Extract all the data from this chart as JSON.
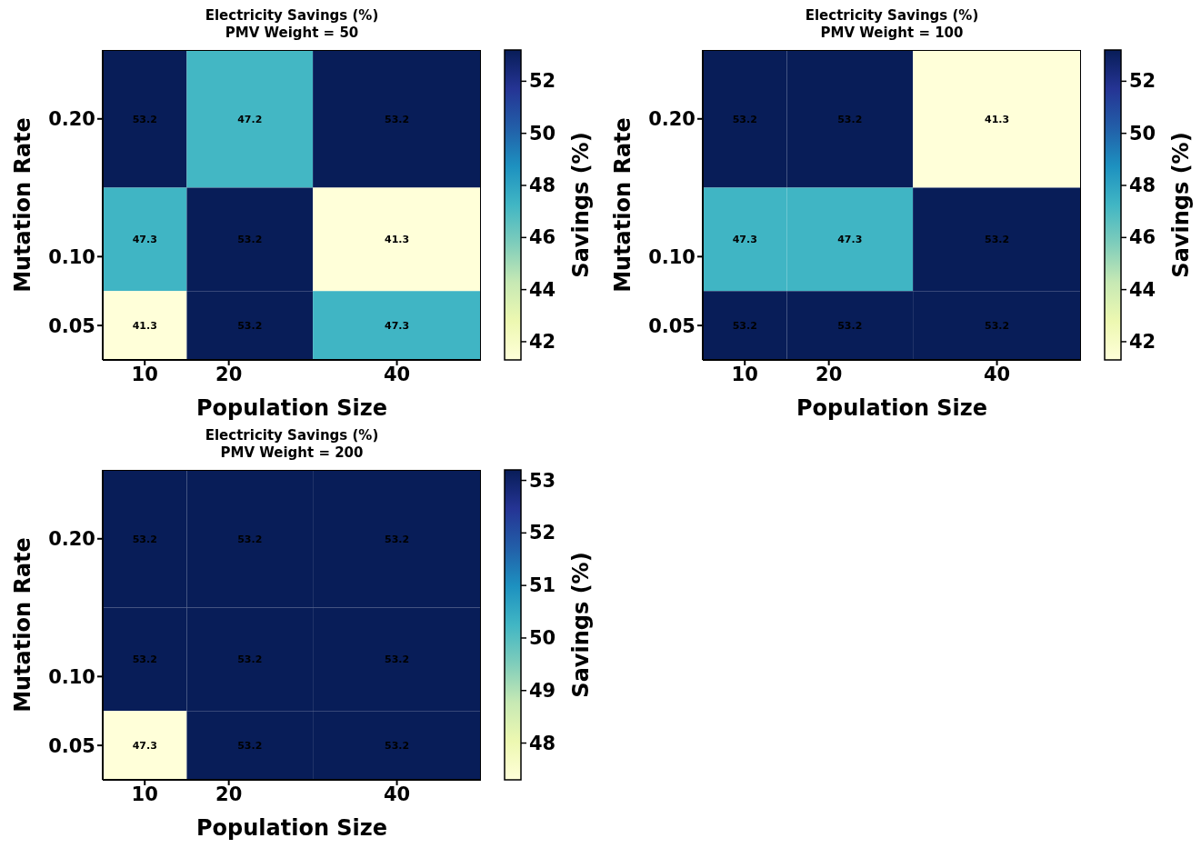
{
  "chart_data": [
    {
      "type": "heatmap",
      "title": "Electricity Savings (%)",
      "subtitle": "PMV Weight = 50",
      "xlabel": "Population Size",
      "ylabel": "Mutation Rate",
      "clabel": "Savings (%)",
      "x": [
        10,
        20,
        40
      ],
      "y": [
        0.2,
        0.1,
        0.05
      ],
      "xlim": [
        5,
        50
      ],
      "ylim": [
        0.025,
        0.25
      ],
      "xticks": [
        10,
        20,
        40
      ],
      "yticks": [
        {
          "value": 0.05,
          "label": "0.05"
        },
        {
          "value": 0.1,
          "label": "0.10"
        },
        {
          "value": 0.2,
          "label": "0.20"
        }
      ],
      "cells": [
        [
          53.2,
          47.2,
          53.2
        ],
        [
          47.3,
          53.2,
          41.3
        ],
        [
          41.3,
          53.2,
          47.3
        ]
      ],
      "clim": [
        41.3,
        53.2
      ],
      "cticks": [
        42,
        44,
        46,
        48,
        50,
        52
      ],
      "data_labels": true
    },
    {
      "type": "heatmap",
      "title": "Electricity Savings (%)",
      "subtitle": "PMV Weight = 100",
      "xlabel": "Population Size",
      "ylabel": "Mutation Rate",
      "clabel": "Savings (%)",
      "x": [
        10,
        20,
        40
      ],
      "y": [
        0.2,
        0.1,
        0.05
      ],
      "xlim": [
        5,
        50
      ],
      "ylim": [
        0.025,
        0.25
      ],
      "xticks": [
        10,
        20,
        40
      ],
      "yticks": [
        {
          "value": 0.05,
          "label": "0.05"
        },
        {
          "value": 0.1,
          "label": "0.10"
        },
        {
          "value": 0.2,
          "label": "0.20"
        }
      ],
      "cells": [
        [
          53.2,
          53.2,
          41.3
        ],
        [
          47.3,
          47.3,
          53.2
        ],
        [
          53.2,
          53.2,
          53.2
        ]
      ],
      "clim": [
        41.3,
        53.2
      ],
      "cticks": [
        42,
        44,
        46,
        48,
        50,
        52
      ],
      "data_labels": true
    },
    {
      "type": "heatmap",
      "title": "Electricity Savings (%)",
      "subtitle": "PMV Weight = 200",
      "xlabel": "Population Size",
      "ylabel": "Mutation Rate",
      "clabel": "Savings (%)",
      "x": [
        10,
        20,
        40
      ],
      "y": [
        0.2,
        0.1,
        0.05
      ],
      "xlim": [
        5,
        50
      ],
      "ylim": [
        0.025,
        0.25
      ],
      "xticks": [
        10,
        20,
        40
      ],
      "yticks": [
        {
          "value": 0.05,
          "label": "0.05"
        },
        {
          "value": 0.1,
          "label": "0.10"
        },
        {
          "value": 0.2,
          "label": "0.20"
        }
      ],
      "cells": [
        [
          53.2,
          53.2,
          53.2
        ],
        [
          53.2,
          53.2,
          53.2
        ],
        [
          47.3,
          53.2,
          53.2
        ]
      ],
      "clim": [
        47.3,
        53.2
      ],
      "cticks": [
        48,
        49,
        50,
        51,
        52,
        53
      ],
      "data_labels": true
    }
  ]
}
